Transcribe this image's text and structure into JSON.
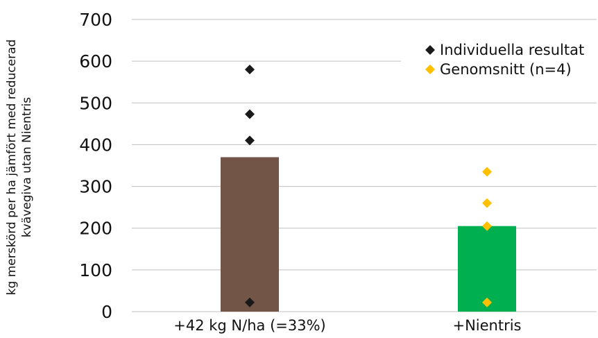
{
  "chart_data": {
    "type": "bar",
    "categories": [
      "+42 kg N/ha (=33%)",
      "+Nientris"
    ],
    "bars": [
      {
        "category": "+42 kg N/ha (=33%)",
        "value": 370,
        "color": "#735547"
      },
      {
        "category": "+Nientris",
        "value": 205,
        "color": "#00b050"
      }
    ],
    "points": [
      {
        "category": "+42 kg N/ha (=33%)",
        "values": [
          580,
          473,
          410,
          22
        ],
        "color": "#1a1a1a",
        "marker": "diamond"
      },
      {
        "category": "+Nientris",
        "values": [
          335,
          260,
          205,
          22
        ],
        "color": "#ffc000",
        "marker": "diamond"
      }
    ],
    "ylabel_lines": [
      "kg merskörd per ha jämfört med reducerad",
      "kvävegiva utan Nientris"
    ],
    "xlabel": "",
    "ylim": [
      0,
      700
    ],
    "yticks": [
      0,
      100,
      200,
      300,
      400,
      500,
      600,
      700
    ],
    "grid": true,
    "legend": {
      "placement": "top-right",
      "items": [
        {
          "label": "Individuella resultat",
          "color": "#1a1a1a",
          "marker": "diamond"
        },
        {
          "label": "Genomsnitt (n=4)",
          "color": "#ffc000",
          "marker": "diamond"
        }
      ]
    }
  }
}
